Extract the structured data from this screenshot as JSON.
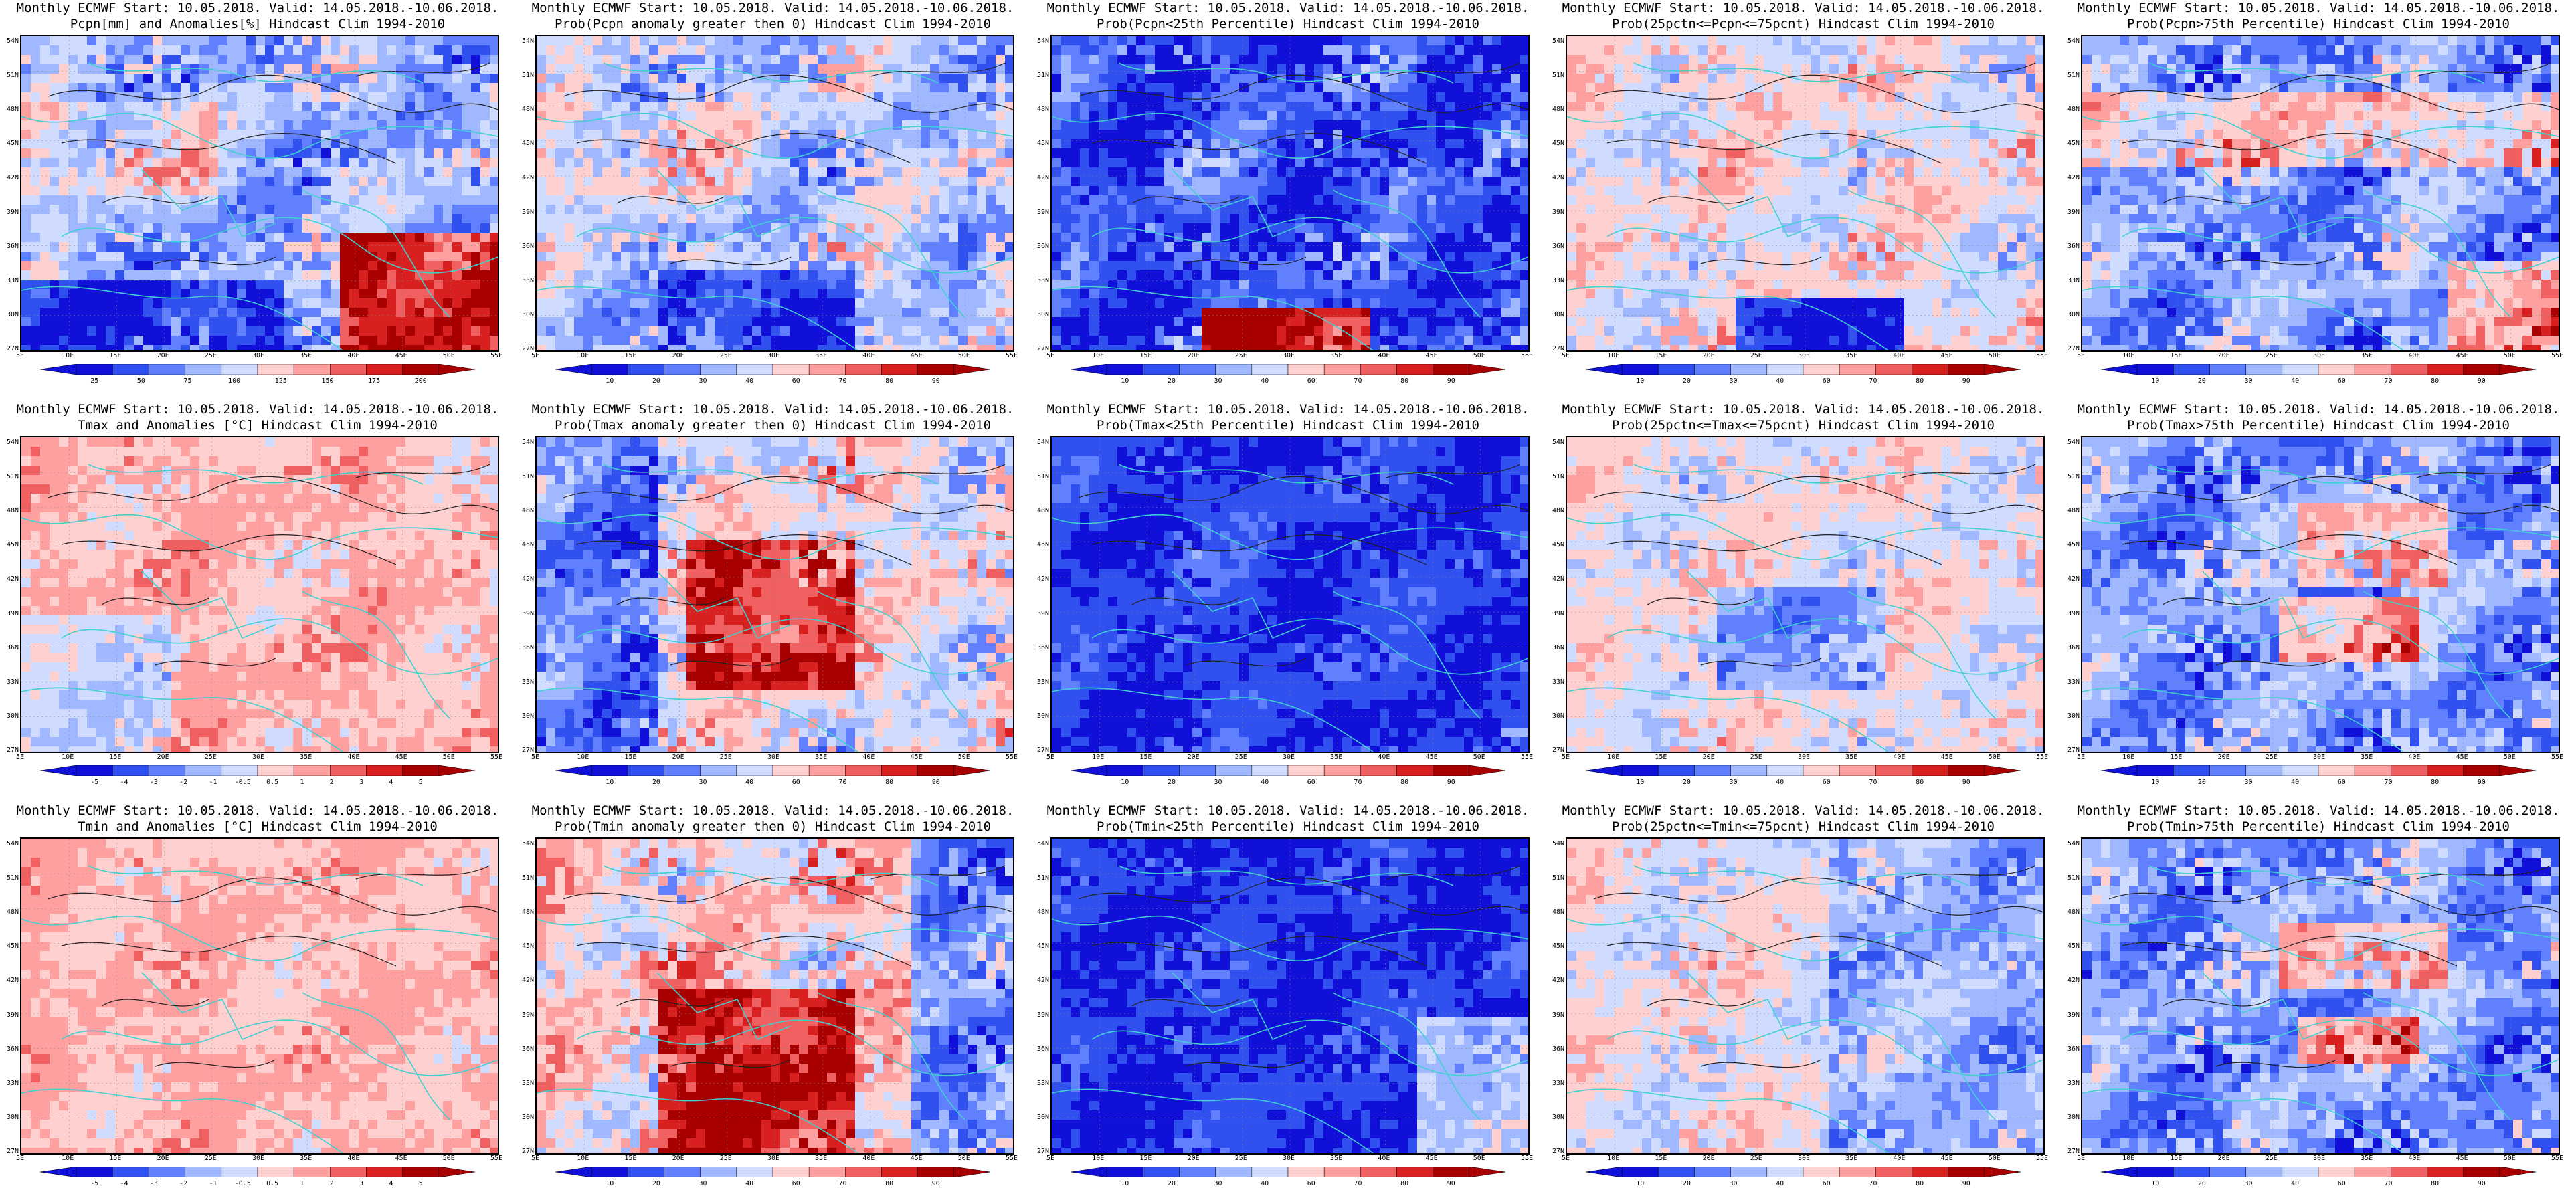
{
  "lat_labels": [
    "54N",
    "51N",
    "48N",
    "45N",
    "42N",
    "39N",
    "36N",
    "33N",
    "30N",
    "27N"
  ],
  "lon_labels": [
    "5E",
    "10E",
    "15E",
    "20E",
    "25E",
    "30E",
    "35E",
    "40E",
    "45E",
    "50E",
    "55E"
  ],
  "colors": {
    "div10": [
      "#1010d8",
      "#3050f0",
      "#6080ff",
      "#a0b8ff",
      "#d0dcff",
      "#ffd0d0",
      "#ffa0a0",
      "#f06060",
      "#d82020",
      "#a80000"
    ],
    "river": "#40d0d0",
    "contour": "#202020"
  },
  "panels": [
    {
      "title1": "Monthly ECMWF Start: 10.05.2018. Valid: 14.05.2018.-10.06.2018.",
      "title2": "Pcpn[mm] and Anomalies[%] Hindcast Clim 1994-2010",
      "scheme": "div10",
      "ticks": [
        "25",
        "50",
        "75",
        "100",
        "125",
        "150",
        "175",
        "200"
      ],
      "field": "pa"
    },
    {
      "title1": "Monthly ECMWF Start: 10.05.2018. Valid: 14.05.2018.-10.06.2018.",
      "title2": "Prob(Pcpn anomaly greater then 0) Hindcast Clim 1994-2010",
      "scheme": "div10",
      "ticks": [
        "10",
        "20",
        "30",
        "40",
        "60",
        "70",
        "80",
        "90"
      ],
      "field": "pg"
    },
    {
      "title1": "Monthly ECMWF Start: 10.05.2018. Valid: 14.05.2018.-10.06.2018.",
      "title2": "Prob(Pcpn<25th Percentile) Hindcast Clim 1994-2010",
      "scheme": "div10",
      "ticks": [
        "10",
        "20",
        "30",
        "40",
        "60",
        "70",
        "80",
        "90"
      ],
      "field": "pl"
    },
    {
      "title1": "Monthly ECMWF Start: 10.05.2018. Valid: 14.05.2018.-10.06.2018.",
      "title2": "Prob(25pctn<=Pcpn<=75pcnt) Hindcast Clim 1994-2010",
      "scheme": "div10",
      "ticks": [
        "10",
        "20",
        "30",
        "40",
        "60",
        "70",
        "80",
        "90"
      ],
      "field": "pm"
    },
    {
      "title1": "Monthly ECMWF Start: 10.05.2018. Valid: 14.05.2018.-10.06.2018.",
      "title2": "Prob(Pcpn>75th Percentile) Hindcast Clim 1994-2010",
      "scheme": "div10",
      "ticks": [
        "10",
        "20",
        "30",
        "40",
        "60",
        "70",
        "80",
        "90"
      ],
      "field": "ph"
    },
    {
      "title1": "Monthly ECMWF Start: 10.05.2018. Valid: 14.05.2018.-10.06.2018.",
      "title2": "Tmax and Anomalies [°C] Hindcast Clim 1994-2010",
      "scheme": "div10",
      "ticks": [
        "-5",
        "-4",
        "-3",
        "-2",
        "-1",
        "-0.5",
        "0.5",
        "1",
        "2",
        "3",
        "4",
        "5"
      ],
      "field": "ta"
    },
    {
      "title1": "Monthly ECMWF Start: 10.05.2018. Valid: 14.05.2018.-10.06.2018.",
      "title2": "Prob(Tmax anomaly greater then 0) Hindcast Clim 1994-2010",
      "scheme": "div10",
      "ticks": [
        "10",
        "20",
        "30",
        "40",
        "60",
        "70",
        "80",
        "90"
      ],
      "field": "tg"
    },
    {
      "title1": "Monthly ECMWF Start: 10.05.2018. Valid: 14.05.2018.-10.06.2018.",
      "title2": "Prob(Tmax<25th Percentile) Hindcast Clim 1994-2010",
      "scheme": "div10",
      "ticks": [
        "10",
        "20",
        "30",
        "40",
        "60",
        "70",
        "80",
        "90"
      ],
      "field": "tl"
    },
    {
      "title1": "Monthly ECMWF Start: 10.05.2018. Valid: 14.05.2018.-10.06.2018.",
      "title2": "Prob(25pctn<=Tmax<=75pcnt) Hindcast Clim 1994-2010",
      "scheme": "div10",
      "ticks": [
        "10",
        "20",
        "30",
        "40",
        "60",
        "70",
        "80",
        "90"
      ],
      "field": "tm"
    },
    {
      "title1": "Monthly ECMWF Start: 10.05.2018. Valid: 14.05.2018.-10.06.2018.",
      "title2": "Prob(Tmax>75th Percentile) Hindcast Clim 1994-2010",
      "scheme": "div10",
      "ticks": [
        "10",
        "20",
        "30",
        "40",
        "60",
        "70",
        "80",
        "90"
      ],
      "field": "th"
    },
    {
      "title1": "Monthly ECMWF Start: 10.05.2018. Valid: 14.05.2018.-10.06.2018.",
      "title2": "Tmin and Anomalies [°C] Hindcast Clim 1994-2010",
      "scheme": "div10",
      "ticks": [
        "-5",
        "-4",
        "-3",
        "-2",
        "-1",
        "-0.5",
        "0.5",
        "1",
        "2",
        "3",
        "4",
        "5"
      ],
      "field": "na"
    },
    {
      "title1": "Monthly ECMWF Start: 10.05.2018. Valid: 14.05.2018.-10.06.2018.",
      "title2": "Prob(Tmin anomaly greater then 0) Hindcast Clim 1994-2010",
      "scheme": "div10",
      "ticks": [
        "10",
        "20",
        "30",
        "40",
        "60",
        "70",
        "80",
        "90"
      ],
      "field": "ng"
    },
    {
      "title1": "Monthly ECMWF Start: 10.05.2018. Valid: 14.05.2018.-10.06.2018.",
      "title2": "Prob(Tmin<25th Percentile) Hindcast Clim 1994-2010",
      "scheme": "div10",
      "ticks": [
        "10",
        "20",
        "30",
        "40",
        "60",
        "70",
        "80",
        "90"
      ],
      "field": "nl"
    },
    {
      "title1": "Monthly ECMWF Start: 10.05.2018. Valid: 14.05.2018.-10.06.2018.",
      "title2": "Prob(25pctn<=Tmin<=75pcnt) Hindcast Clim 1994-2010",
      "scheme": "div10",
      "ticks": [
        "10",
        "20",
        "30",
        "40",
        "60",
        "70",
        "80",
        "90"
      ],
      "field": "nm"
    },
    {
      "title1": "Monthly ECMWF Start: 10.05.2018. Valid: 14.05.2018.-10.06.2018.",
      "title2": "Prob(Tmin>75th Percentile) Hindcast Clim 1994-2010",
      "scheme": "div10",
      "ticks": [
        "10",
        "20",
        "30",
        "40",
        "60",
        "70",
        "80",
        "90"
      ],
      "field": "nh"
    }
  ]
}
